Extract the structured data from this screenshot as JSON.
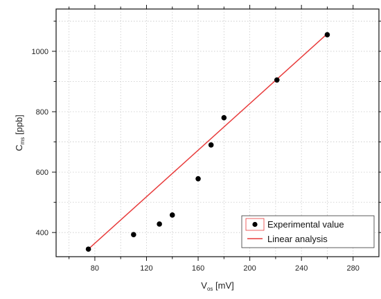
{
  "chart_data": {
    "type": "scatter",
    "xlabel_main": "V",
    "xlabel_sub": "os",
    "xlabel_unit": " [mV]",
    "ylabel_main": "C",
    "ylabel_sub": "ms",
    "ylabel_unit": " [ppb]",
    "xlim": [
      50,
      300
    ],
    "ylim": [
      320,
      1140
    ],
    "x_ticks": [
      80,
      120,
      160,
      200,
      240,
      280
    ],
    "y_ticks": [
      400,
      600,
      800,
      1000
    ],
    "x_tick_labels": [
      "80",
      "120",
      "160",
      "200",
      "240",
      "280"
    ],
    "y_tick_labels": [
      "400",
      "600",
      "800",
      "1000"
    ],
    "grid": true,
    "legend_position": "bottom-right",
    "series": [
      {
        "name": "Experimental value",
        "kind": "scatter",
        "color": "#000000",
        "x": [
          75,
          110,
          130,
          140,
          160,
          170,
          180,
          221,
          260
        ],
        "y": [
          345,
          393,
          428,
          458,
          578,
          690,
          780,
          905,
          1055
        ]
      },
      {
        "name": "Linear analysis",
        "kind": "line",
        "color": "#e83b3b",
        "x": [
          75,
          260
        ],
        "y": [
          345,
          1058
        ]
      }
    ]
  }
}
